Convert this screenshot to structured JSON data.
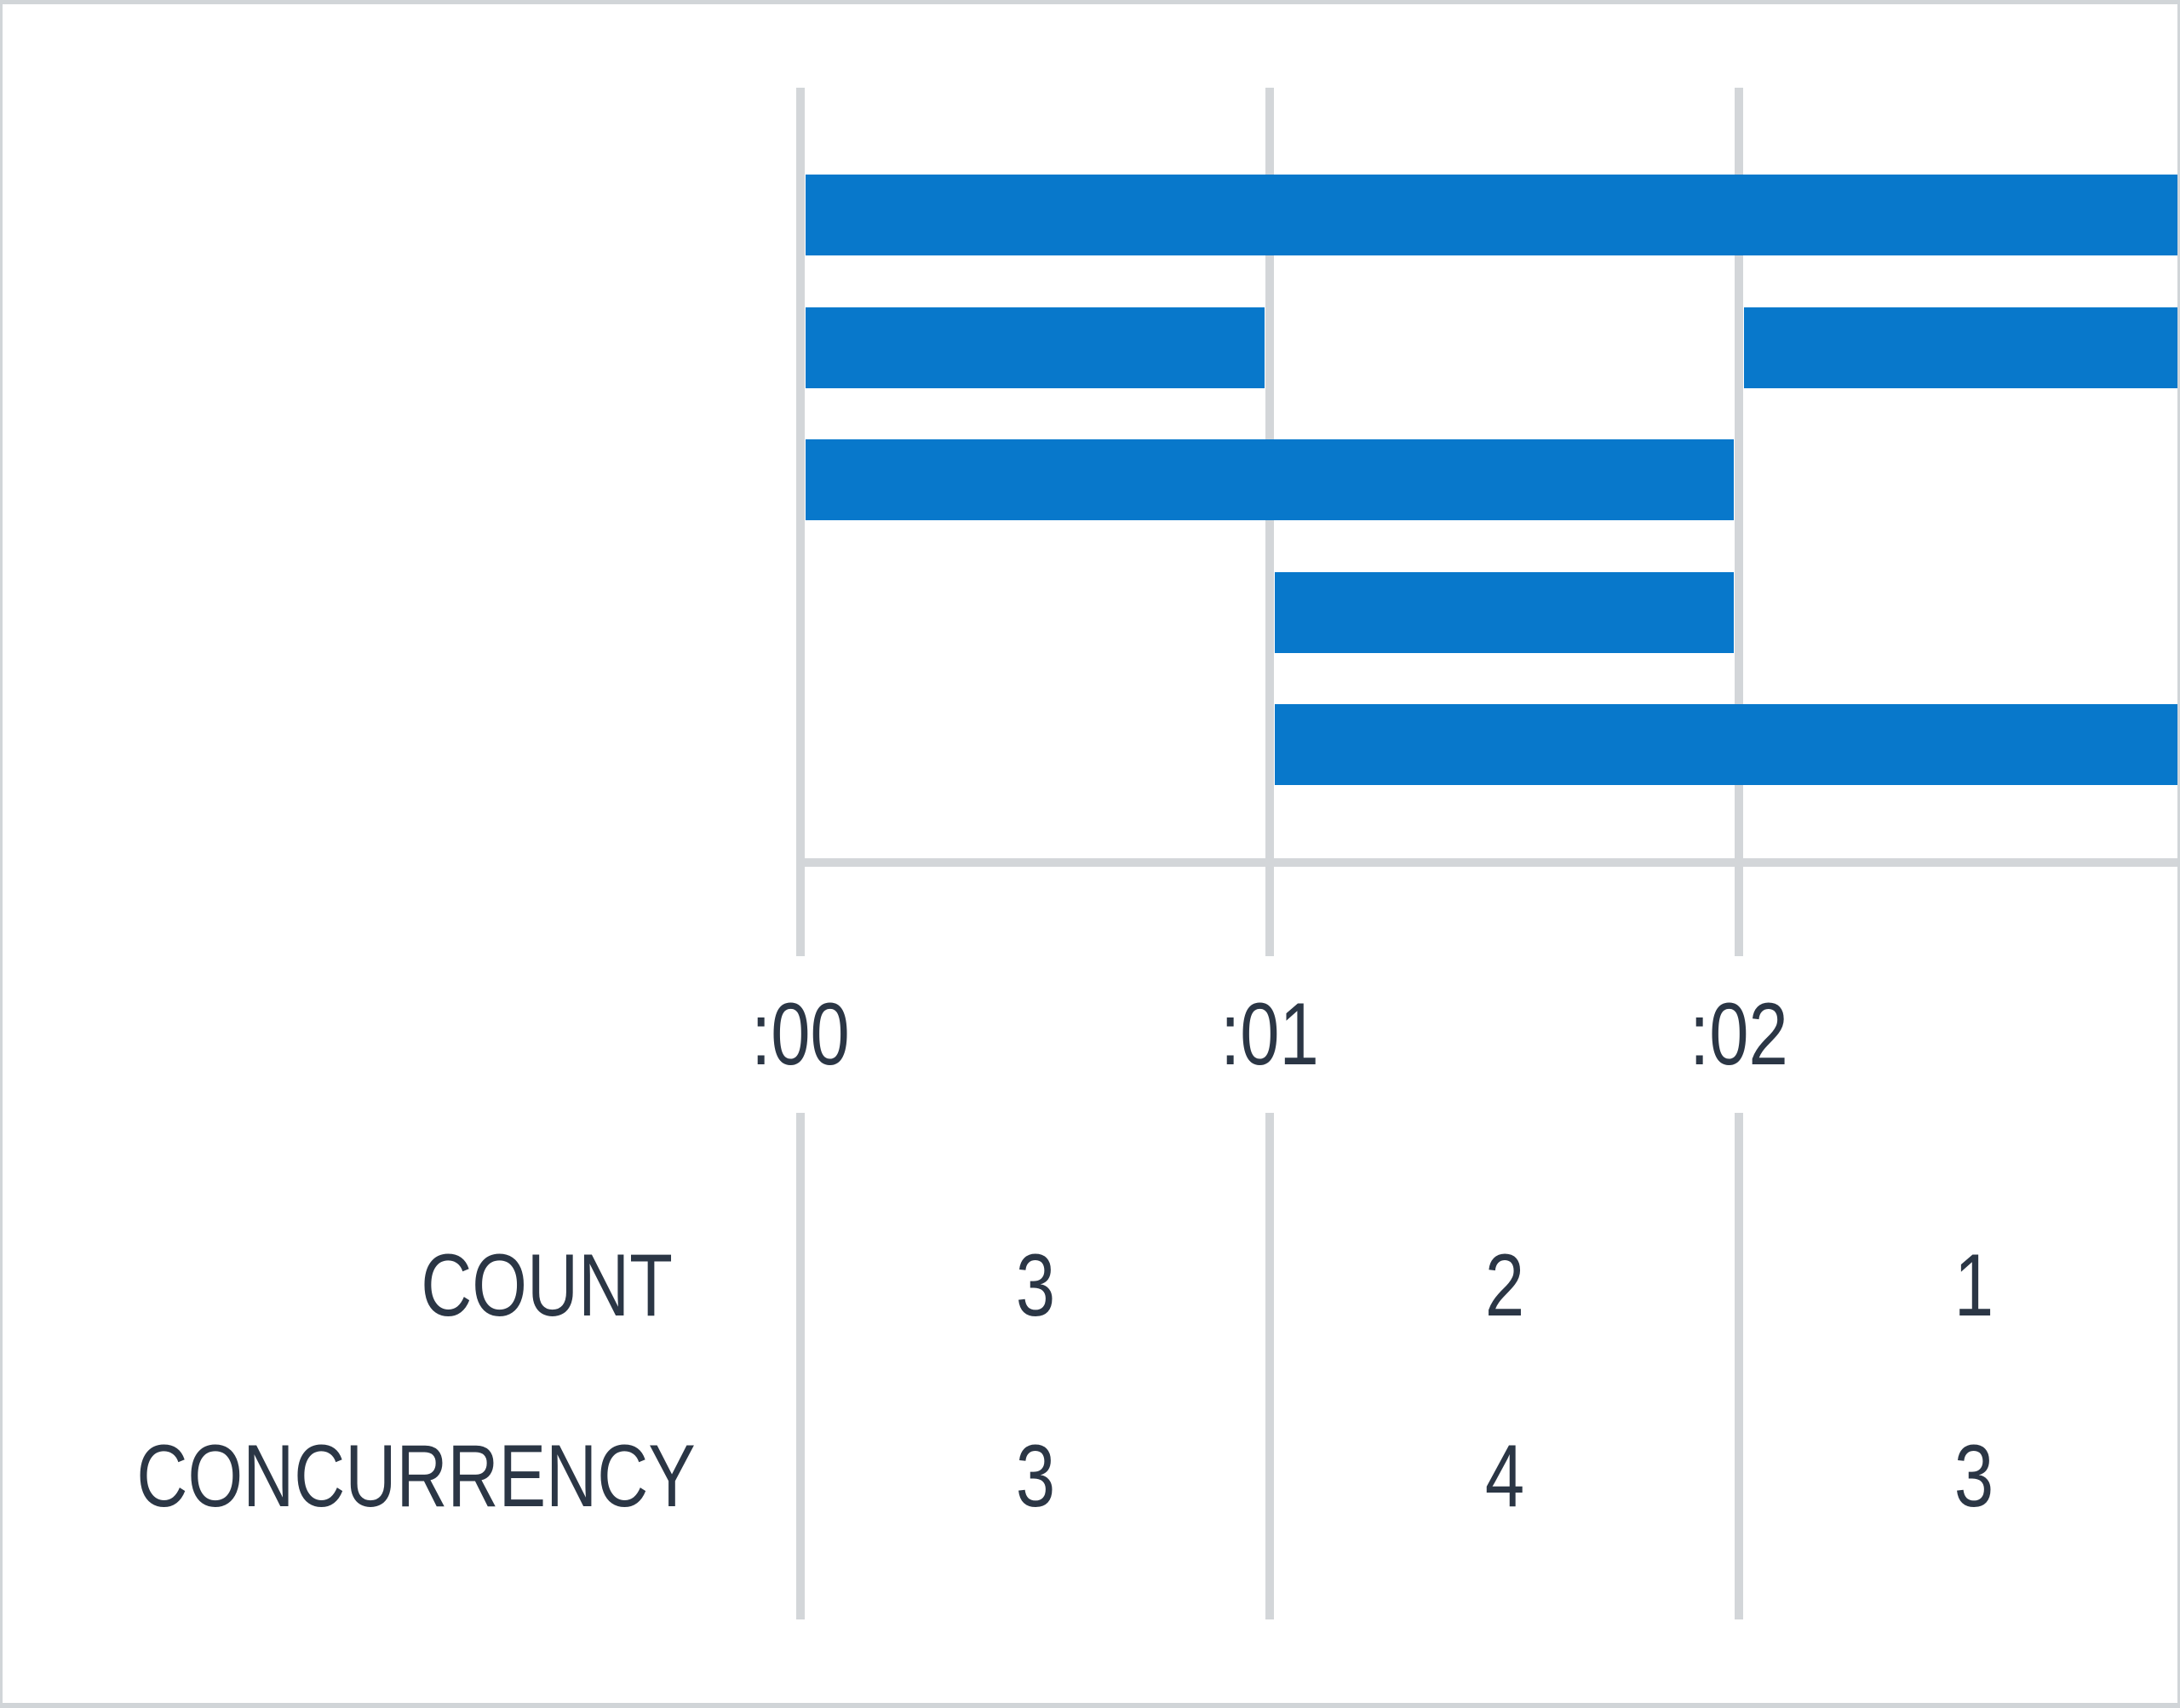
{
  "chart_data": {
    "type": "gantt",
    "description": "Span concurrency timeline: horizontal bars per span over a three-minute window, with per-minute summary table",
    "x_axis": {
      "unit": "minute",
      "tick_labels": [
        ":00",
        ":01",
        ":02"
      ],
      "tick_minutes": [
        0,
        1,
        2
      ],
      "visible_range_minutes": [
        -1.7,
        2.94
      ],
      "grid": "vertical-only"
    },
    "rows": [
      {
        "spans": [
          {
            "start": 0.01,
            "end": 2.94,
            "clipped_right": true
          }
        ]
      },
      {
        "spans": [
          {
            "start": 0.01,
            "end": 0.99
          },
          {
            "start": 2.01,
            "end": 2.94,
            "clipped_right": true
          }
        ]
      },
      {
        "spans": [
          {
            "start": 0.01,
            "end": 1.99
          }
        ]
      },
      {
        "spans": [
          {
            "start": 1.01,
            "end": 1.99
          }
        ]
      },
      {
        "spans": [
          {
            "start": 1.01,
            "end": 2.94,
            "clipped_right": true
          }
        ]
      }
    ],
    "summary_table": {
      "rows": [
        {
          "label": "COUNT",
          "values": [
            "3",
            "2",
            "1"
          ]
        },
        {
          "label": "CONCURRENCY",
          "values": [
            "3",
            "4",
            "3"
          ]
        }
      ]
    },
    "legend": "none",
    "title": "",
    "colors": {
      "bar": "#0878cb",
      "gridline": "#d3d6d9",
      "text": "#2b3645",
      "border": "#d1d5d8"
    }
  }
}
